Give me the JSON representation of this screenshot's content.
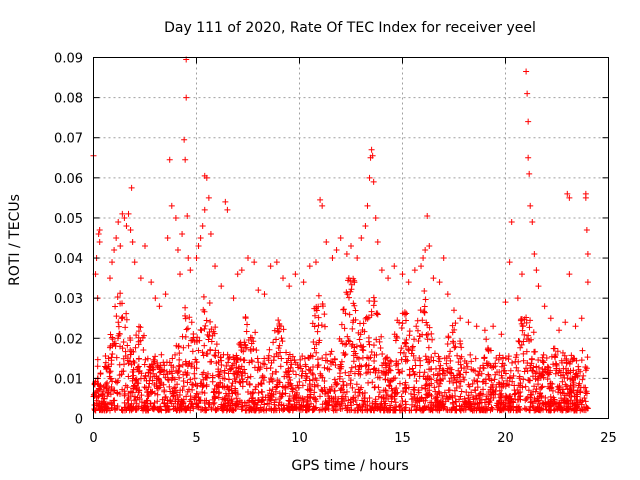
{
  "chart_data": {
    "type": "scatter",
    "title": "Day 111 of 2020, Rate Of TEC Index for receiver yeel",
    "xlabel": "GPS time / hours",
    "ylabel": "ROTI / TECUs",
    "xlim": [
      0,
      25
    ],
    "ylim": [
      0,
      0.09
    ],
    "xticks": [
      0,
      5,
      10,
      15,
      20,
      25
    ],
    "xtick_labels": [
      "0",
      "5",
      "10",
      "15",
      "20",
      "25"
    ],
    "yticks": [
      0,
      0.01,
      0.02,
      0.03,
      0.04,
      0.05,
      0.06,
      0.07,
      0.08,
      0.09
    ],
    "ytick_labels": [
      "0",
      "0.01",
      "0.02",
      "0.03",
      "0.04",
      "0.05",
      "0.06",
      "0.07",
      "0.08",
      "0.09"
    ],
    "grid": true,
    "marker": "+",
    "color": "#ff0000",
    "series": [
      {
        "name": "ROTI",
        "points": [
          [
            0.0,
            0.0655
          ],
          [
            0.1,
            0.036
          ],
          [
            0.15,
            0.04
          ],
          [
            0.2,
            0.03
          ],
          [
            0.25,
            0.046
          ],
          [
            0.3,
            0.047
          ],
          [
            0.3,
            0.044
          ],
          [
            0.8,
            0.035
          ],
          [
            0.9,
            0.039
          ],
          [
            1.0,
            0.042
          ],
          [
            1.1,
            0.045
          ],
          [
            1.2,
            0.049
          ],
          [
            1.3,
            0.043
          ],
          [
            1.4,
            0.051
          ],
          [
            1.5,
            0.05
          ],
          [
            1.6,
            0.048
          ],
          [
            1.7,
            0.051
          ],
          [
            1.8,
            0.047
          ],
          [
            1.9,
            0.044
          ],
          [
            1.85,
            0.0575
          ],
          [
            2.0,
            0.039
          ],
          [
            2.3,
            0.035
          ],
          [
            2.5,
            0.043
          ],
          [
            2.8,
            0.034
          ],
          [
            3.0,
            0.03
          ],
          [
            3.2,
            0.028
          ],
          [
            3.5,
            0.031
          ],
          [
            3.6,
            0.045
          ],
          [
            3.7,
            0.0645
          ],
          [
            3.8,
            0.053
          ],
          [
            4.0,
            0.05
          ],
          [
            4.1,
            0.042
          ],
          [
            4.2,
            0.036
          ],
          [
            4.3,
            0.046
          ],
          [
            4.4,
            0.0695
          ],
          [
            4.45,
            0.0645
          ],
          [
            4.5,
            0.0895
          ],
          [
            4.5,
            0.08
          ],
          [
            4.55,
            0.0505
          ],
          [
            4.6,
            0.04
          ],
          [
            4.7,
            0.037
          ],
          [
            5.0,
            0.04
          ],
          [
            5.1,
            0.043
          ],
          [
            5.2,
            0.045
          ],
          [
            5.3,
            0.048
          ],
          [
            5.4,
            0.0605
          ],
          [
            5.5,
            0.06
          ],
          [
            5.6,
            0.055
          ],
          [
            5.4,
            0.052
          ],
          [
            5.7,
            0.046
          ],
          [
            5.9,
            0.038
          ],
          [
            6.2,
            0.033
          ],
          [
            6.4,
            0.054
          ],
          [
            6.5,
            0.052
          ],
          [
            6.8,
            0.03
          ],
          [
            7.0,
            0.036
          ],
          [
            7.2,
            0.037
          ],
          [
            7.5,
            0.04
          ],
          [
            7.8,
            0.039
          ],
          [
            8.0,
            0.032
          ],
          [
            8.3,
            0.031
          ],
          [
            8.6,
            0.038
          ],
          [
            8.9,
            0.039
          ],
          [
            9.2,
            0.035
          ],
          [
            9.5,
            0.033
          ],
          [
            9.8,
            0.036
          ],
          [
            10.2,
            0.034
          ],
          [
            10.5,
            0.038
          ],
          [
            10.8,
            0.039
          ],
          [
            11.0,
            0.0545
          ],
          [
            11.1,
            0.053
          ],
          [
            11.3,
            0.044
          ],
          [
            11.6,
            0.04
          ],
          [
            11.8,
            0.042
          ],
          [
            12.0,
            0.045
          ],
          [
            12.3,
            0.041
          ],
          [
            12.5,
            0.043
          ],
          [
            12.8,
            0.04
          ],
          [
            13.0,
            0.045
          ],
          [
            13.2,
            0.048
          ],
          [
            13.3,
            0.053
          ],
          [
            13.4,
            0.06
          ],
          [
            13.45,
            0.065
          ],
          [
            13.5,
            0.067
          ],
          [
            13.55,
            0.0655
          ],
          [
            13.6,
            0.059
          ],
          [
            13.7,
            0.05
          ],
          [
            13.8,
            0.044
          ],
          [
            14.0,
            0.037
          ],
          [
            14.3,
            0.035
          ],
          [
            14.6,
            0.038
          ],
          [
            15.0,
            0.036
          ],
          [
            15.3,
            0.034
          ],
          [
            15.6,
            0.037
          ],
          [
            15.9,
            0.038
          ],
          [
            16.0,
            0.04
          ],
          [
            16.1,
            0.042
          ],
          [
            16.2,
            0.0505
          ],
          [
            16.3,
            0.043
          ],
          [
            16.5,
            0.035
          ],
          [
            16.8,
            0.034
          ],
          [
            17.0,
            0.04
          ],
          [
            17.2,
            0.031
          ],
          [
            17.5,
            0.027
          ],
          [
            17.8,
            0.025
          ],
          [
            18.2,
            0.024
          ],
          [
            18.6,
            0.023
          ],
          [
            19.0,
            0.022
          ],
          [
            19.4,
            0.023
          ],
          [
            19.8,
            0.021
          ],
          [
            20.0,
            0.029
          ],
          [
            20.2,
            0.039
          ],
          [
            20.3,
            0.049
          ],
          [
            20.6,
            0.03
          ],
          [
            20.8,
            0.036
          ],
          [
            21.0,
            0.0865
          ],
          [
            21.05,
            0.081
          ],
          [
            21.1,
            0.074
          ],
          [
            21.1,
            0.065
          ],
          [
            21.15,
            0.061
          ],
          [
            21.2,
            0.053
          ],
          [
            21.3,
            0.049
          ],
          [
            21.4,
            0.041
          ],
          [
            21.5,
            0.037
          ],
          [
            21.6,
            0.033
          ],
          [
            21.9,
            0.028
          ],
          [
            22.2,
            0.025
          ],
          [
            22.6,
            0.022
          ],
          [
            22.9,
            0.024
          ],
          [
            23.0,
            0.056
          ],
          [
            23.1,
            0.055
          ],
          [
            23.1,
            0.036
          ],
          [
            23.4,
            0.023
          ],
          [
            23.7,
            0.025
          ],
          [
            23.9,
            0.056
          ],
          [
            23.9,
            0.055
          ],
          [
            23.95,
            0.047
          ],
          [
            24.0,
            0.041
          ],
          [
            24.0,
            0.034
          ]
        ]
      }
    ]
  }
}
